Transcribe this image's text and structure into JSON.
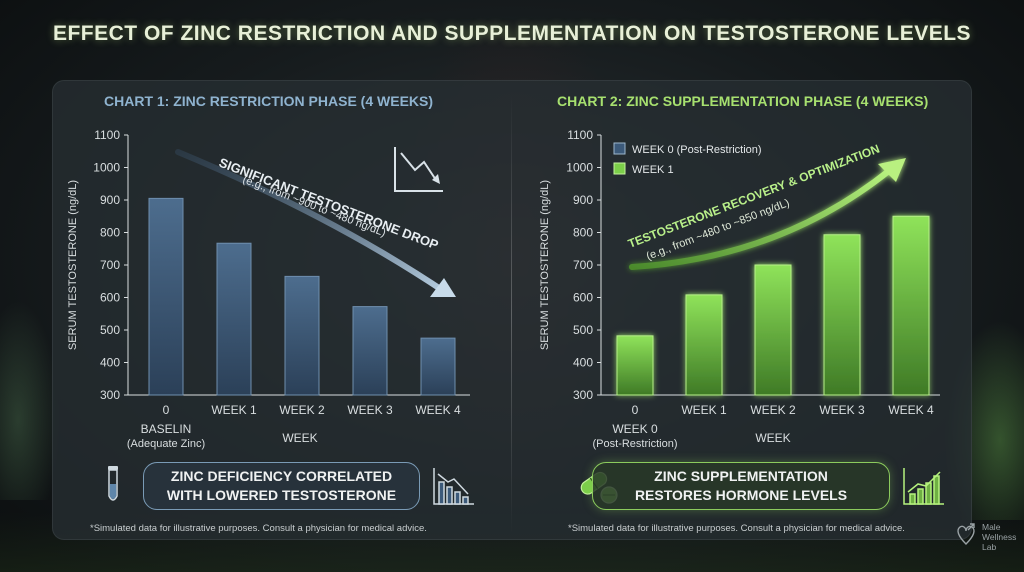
{
  "title": "EFFECT OF ZINC RESTRICTION AND SUPPLEMENTATION ON TESTOSTERONE LEVELS",
  "chart_data": [
    {
      "type": "bar",
      "title": "CHART 1: ZINC RESTRICTION PHASE (4 WEEKS)",
      "categories": [
        "0",
        "WEEK 1",
        "WEEK 2",
        "WEEK 3",
        "WEEK 4"
      ],
      "category_sublabels": [
        "BASELIN",
        "",
        "",
        "",
        ""
      ],
      "category_note": "(Adequate Zinc)",
      "values": [
        905,
        767,
        665,
        572,
        475
      ],
      "xlabel": "WEEK",
      "ylabel": "SERUM TESTOSTERONE (ng/dL)",
      "ylim": [
        300,
        1100
      ],
      "yticks": [
        300,
        400,
        500,
        600,
        700,
        800,
        900,
        1000,
        1100
      ],
      "color": "#3c5a7a",
      "annotation": {
        "headline": "SIGNIFICANT TESTOSTERONE DROP",
        "detail": "(e.g., from ~900 to ~480 ng/dL)"
      }
    },
    {
      "type": "bar",
      "title": "CHART 2: ZINC SUPPLEMENTATION PHASE (4 WEEKS)",
      "categories": [
        "0",
        "WEEK 1",
        "WEEK 2",
        "WEEK 3",
        "WEEK 4"
      ],
      "category_sublabels": [
        "WEEK 0",
        "",
        "",
        "",
        ""
      ],
      "category_note": "(Post-Restriction)",
      "values": [
        482,
        608,
        700,
        793,
        850
      ],
      "xlabel": "WEEK",
      "ylabel": "SERUM TESTOSTERONE (ng/dL)",
      "ylim": [
        300,
        1100
      ],
      "yticks": [
        300,
        400,
        500,
        600,
        700,
        800,
        900,
        1000,
        1100
      ],
      "color": "#6fb043",
      "legend": {
        "placement": "top-left",
        "items": [
          {
            "label": "WEEK 0 (Post-Restriction)",
            "color": "#3c5a7a"
          },
          {
            "label": "WEEK 1",
            "color": "#7ccf4a"
          }
        ]
      },
      "annotation": {
        "headline": "TESTOSTERONE RECOVERY & OPTIMIZATION",
        "detail": "(e.g., from ~480 to ~850 ng/dL)"
      }
    }
  ],
  "callouts": [
    {
      "line1": "ZINC DEFICIENCY CORRELATED",
      "line2": "WITH LOWERED TESTOSTERONE"
    },
    {
      "line1": "ZINC SUPPLEMENTATION",
      "line2": "RESTORES HORMONE LEVELS"
    }
  ],
  "footnote": "*Simulated data for illustrative purposes. Consult a physician for medical advice.",
  "brand": {
    "line1": "Male",
    "line2": "Wellness",
    "line3": "Lab"
  },
  "icons": [
    "test-tube-icon",
    "declining-chart-icon",
    "pills-icon",
    "growth-chart-icon",
    "trend-down-icon",
    "logo-icon"
  ]
}
